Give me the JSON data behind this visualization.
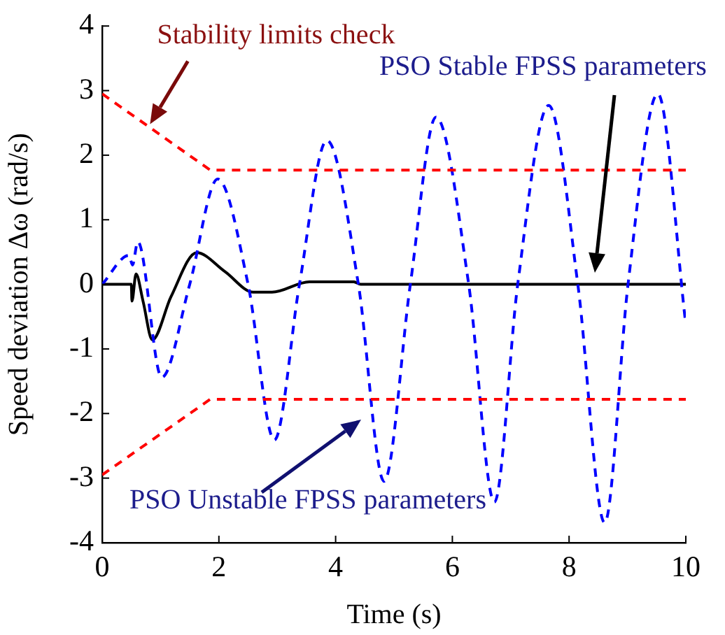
{
  "chart_data": {
    "type": "line",
    "xlabel": "Time (s)",
    "ylabel": "Speed deviation Δω (rad/s)",
    "xlim": [
      0,
      10
    ],
    "xticks": [
      0,
      2,
      4,
      6,
      8,
      10
    ],
    "ylim": [
      -4,
      4
    ],
    "yticks": [
      -4,
      -3,
      -2,
      -1,
      0,
      1,
      2,
      3,
      4
    ],
    "grid": false,
    "legend": false,
    "marker": "none",
    "series": [
      {
        "color": "#ff0000",
        "line_style": "dashed",
        "x": [
          0,
          1.85,
          10
        ],
        "values": [
          2.95,
          1.77,
          1.77
        ]
      },
      {
        "color": "#ff0000",
        "line_style": "dashed",
        "x": [
          0,
          1.85,
          10
        ],
        "values": [
          -2.95,
          -1.78,
          -1.78
        ]
      },
      {
        "color": "#0000ff",
        "line_style": "dashed",
        "x": [
          0,
          0.46,
          0.52,
          0.61,
          1.02,
          1.5,
          1.98,
          2.5,
          2.95,
          3.38,
          3.85,
          4.39,
          4.83,
          5.28,
          5.72,
          6.28,
          6.72,
          7.12,
          7.65,
          8.15,
          8.61,
          9.01,
          9.52,
          10
        ],
        "values": [
          0,
          0.45,
          0.3,
          0.66,
          -1.44,
          0,
          1.63,
          0,
          -2.41,
          0,
          2.23,
          0,
          -3.05,
          0,
          2.59,
          0,
          -3.37,
          0,
          2.77,
          0,
          -3.69,
          0,
          2.95,
          -0.62
        ]
      },
      {
        "color": "#000000",
        "line_style": "solid",
        "x": [
          0,
          0.5,
          0.51,
          0.58,
          0.7,
          0.86,
          1.18,
          1.62,
          2.1,
          2.59,
          2.91,
          3.55,
          4.31,
          4.43,
          10
        ],
        "values": [
          0,
          0,
          -0.26,
          0.16,
          -0.26,
          -0.86,
          -0.19,
          0.49,
          0.2,
          -0.12,
          -0.12,
          0.04,
          0.04,
          0,
          0
        ]
      }
    ],
    "annotations": [
      {
        "text": "Stability limits check",
        "x": 0.82,
        "y": 2.48
      },
      "PSO Stable FPSS parameters",
      "PSO Unstable FPSS parameters"
    ]
  }
}
